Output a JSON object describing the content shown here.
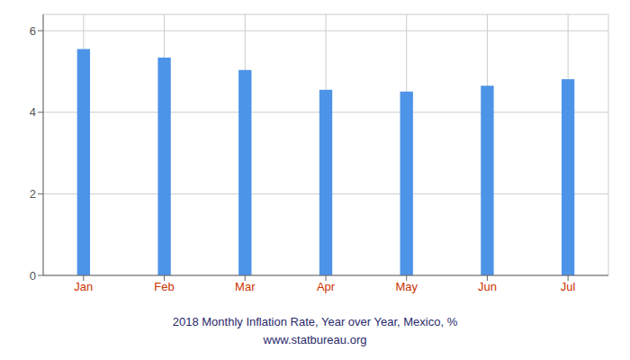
{
  "chart_data": {
    "type": "bar",
    "title": "2018 Monthly Inflation Rate, Year over Year, Mexico, %",
    "subtitle": "www.statbureau.org",
    "categories": [
      "Jan",
      "Feb",
      "Mar",
      "Apr",
      "May",
      "Jun",
      "Jul"
    ],
    "values": [
      5.55,
      5.34,
      5.04,
      4.55,
      4.51,
      4.65,
      4.81
    ],
    "color": "#4d94e8",
    "ylim": [
      0,
      6.4
    ],
    "yticks": [
      0,
      2,
      4,
      6
    ],
    "grid": true
  }
}
